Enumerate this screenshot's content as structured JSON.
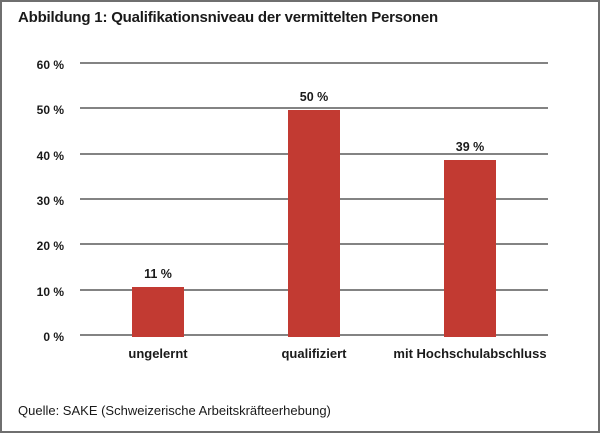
{
  "figure": {
    "title": "Abbildung 1: Qualifikationsniveau der vermittelten Personen",
    "source": "Quelle: SAKE (Schweizerische Arbeitskräfteerhebung)"
  },
  "colors": {
    "bar": "#c23a32",
    "grid": "#838383",
    "frame_border": "#6f6f6f",
    "text": "#1a1a1a",
    "background": "#ffffff"
  },
  "chart_data": {
    "type": "bar",
    "title": "Abbildung 1: Qualifikationsniveau der vermittelten Personen",
    "categories": [
      "ungelernt",
      "qualifiziert",
      "mit Hochschulabschluss"
    ],
    "values": [
      11,
      50,
      39
    ],
    "value_labels": [
      "11 %",
      "50 %",
      "39 %"
    ],
    "xlabel": "",
    "ylabel": "",
    "ylim": [
      0,
      60
    ],
    "ytick_step": 10,
    "ytick_labels": [
      "0 %",
      "10 %",
      "20 %",
      "30 %",
      "40 %",
      "50 %",
      "60 %"
    ],
    "grid": true,
    "legend": false,
    "bar_color": "#c23a32",
    "source": "Quelle: SAKE (Schweizerische Arbeitskräfteerhebung)"
  }
}
